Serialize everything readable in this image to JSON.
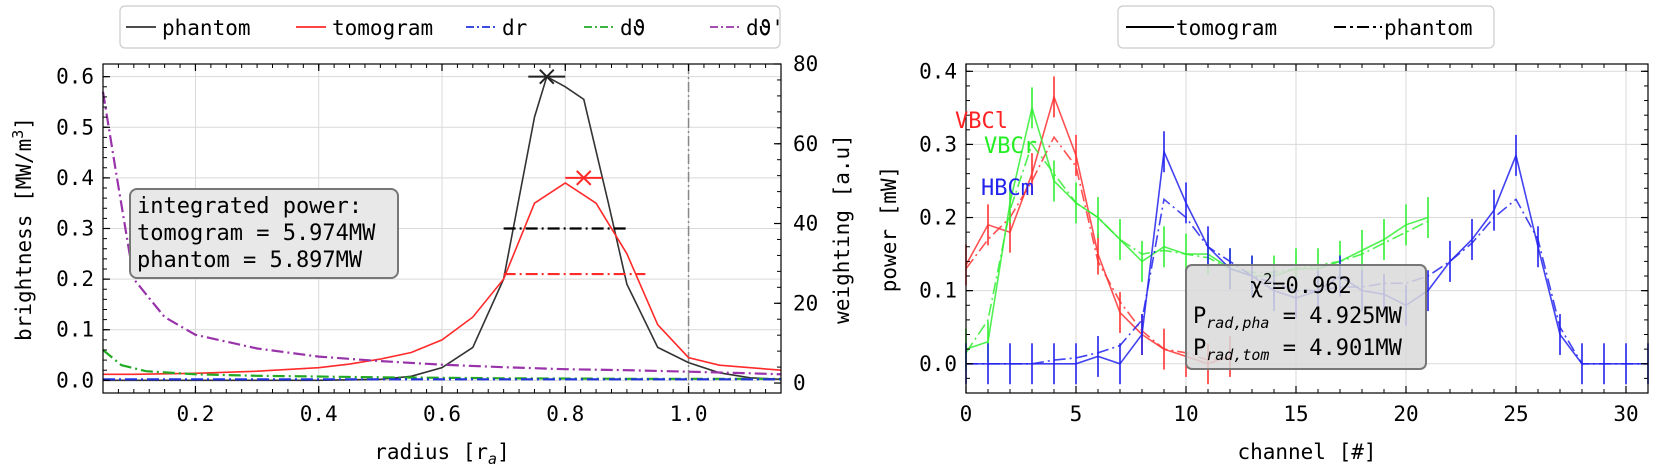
{
  "chart_data": [
    {
      "type": "line",
      "xlabel": "radius [r",
      "xlabel_sub": "a",
      "xlabel_end": "]",
      "ylabel": "brightness [MW/m",
      "ylabel_sup": "3",
      "ylabel_end": "]",
      "ylabel_right": "weighting [a.u]",
      "xlim": [
        0.05,
        1.15
      ],
      "ylim": [
        -0.025,
        0.625
      ],
      "ylim_right": [
        -2.5,
        80
      ],
      "xticks": [
        "0.2",
        "0.4",
        "0.6",
        "0.8",
        "1.0"
      ],
      "yticks": [
        "0.0",
        "0.1",
        "0.2",
        "0.3",
        "0.4",
        "0.5",
        "0.6"
      ],
      "yticks_right": [
        "0",
        "20",
        "40",
        "60",
        "80"
      ],
      "grid": true,
      "legend_placement": "top, outside",
      "legend": [
        {
          "label": "phantom",
          "color": "#333333",
          "style": "solid"
        },
        {
          "label": "tomogram",
          "color": "#ff2a2a",
          "style": "solid"
        },
        {
          "label": "dr",
          "color": "#2233dd",
          "style": "dashdot"
        },
        {
          "label": "dϑ",
          "color": "#22aa22",
          "style": "dashdot"
        },
        {
          "label": "dϑ'",
          "color": "#9933aa",
          "style": "dashdot"
        }
      ],
      "series": [
        {
          "name": "phantom",
          "color": "#333333",
          "x": [
            0.05,
            0.1,
            0.2,
            0.3,
            0.4,
            0.5,
            0.55,
            0.6,
            0.65,
            0.7,
            0.75,
            0.77,
            0.8,
            0.83,
            0.87,
            0.9,
            0.95,
            1.0,
            1.05,
            1.1,
            1.15
          ],
          "y": [
            0.0,
            0.0,
            0.0,
            0.0,
            0.0,
            0.002,
            0.008,
            0.025,
            0.065,
            0.2,
            0.52,
            0.6,
            0.58,
            0.555,
            0.35,
            0.19,
            0.065,
            0.035,
            0.015,
            0.005,
            0.002
          ]
        },
        {
          "name": "tomogram",
          "color": "#ff2a2a",
          "x": [
            0.05,
            0.1,
            0.2,
            0.3,
            0.4,
            0.45,
            0.5,
            0.55,
            0.6,
            0.65,
            0.7,
            0.75,
            0.8,
            0.85,
            0.9,
            0.95,
            1.0,
            1.05,
            1.1,
            1.15
          ],
          "y": [
            0.012,
            0.012,
            0.014,
            0.018,
            0.025,
            0.032,
            0.042,
            0.055,
            0.08,
            0.125,
            0.2,
            0.35,
            0.39,
            0.35,
            0.25,
            0.11,
            0.045,
            0.03,
            0.025,
            0.02
          ]
        },
        {
          "name": "dϑ'",
          "color": "#9933aa",
          "dashed": true,
          "x": [
            0.05,
            0.07,
            0.1,
            0.15,
            0.2,
            0.3,
            0.4,
            0.5,
            0.6,
            0.7,
            0.8,
            0.9,
            1.0,
            1.1,
            1.15
          ],
          "y": [
            0.57,
            0.42,
            0.2,
            0.125,
            0.09,
            0.063,
            0.047,
            0.038,
            0.031,
            0.026,
            0.022,
            0.02,
            0.017,
            0.014,
            0.012
          ]
        },
        {
          "name": "dϑ",
          "color": "#22aa22",
          "dashed": true,
          "x": [
            0.05,
            0.08,
            0.12,
            0.2,
            0.3,
            0.5,
            0.7,
            0.9,
            1.1,
            1.15
          ],
          "y": [
            0.06,
            0.03,
            0.018,
            0.012,
            0.009,
            0.006,
            0.004,
            0.003,
            0.003,
            0.003
          ]
        },
        {
          "name": "dr",
          "color": "#2233dd",
          "dashed": true,
          "x": [
            0.05,
            0.3,
            0.6,
            0.9,
            1.15
          ],
          "y": [
            0.002,
            0.002,
            0.002,
            0.002,
            0.002
          ]
        }
      ],
      "markers": [
        {
          "color": "#222222",
          "x": 0.77,
          "y": 0.6,
          "xerr": 0.03
        },
        {
          "color": "#ff2a2a",
          "x": 0.83,
          "y": 0.4,
          "xerr": 0.03
        }
      ],
      "width_lines": [
        {
          "color": "#000000",
          "x1": 0.7,
          "x2": 0.9,
          "y": 0.3
        },
        {
          "color": "#ff2a2a",
          "x1": 0.7,
          "x2": 0.93,
          "y": 0.21
        }
      ],
      "vline": {
        "x": 1.0,
        "color": "#888888"
      },
      "annotation": {
        "line1": "integrated power:",
        "line2": "tomogram = 5.974MW",
        "line3": "phantom = 5.897MW"
      }
    },
    {
      "type": "line",
      "xlabel": "channel [#]",
      "ylabel": "power [mW]",
      "xlim": [
        0,
        31
      ],
      "ylim": [
        -0.04,
        0.41
      ],
      "xticks": [
        "0",
        "5",
        "10",
        "15",
        "20",
        "25",
        "30"
      ],
      "yticks": [
        "0.0",
        "0.1",
        "0.2",
        "0.3",
        "0.4"
      ],
      "grid": true,
      "legend_placement": "top, outside",
      "legend": [
        {
          "label": "tomogram",
          "style": "solid"
        },
        {
          "label": "phantom",
          "style": "dashdot"
        }
      ],
      "camera_labels": [
        {
          "label": "VBCl",
          "color": "#ff2222"
        },
        {
          "label": "VBCr",
          "color": "#22ee22"
        },
        {
          "label": "HBCm",
          "color": "#2222ee"
        }
      ],
      "series": [
        {
          "name": "VBCl tomogram",
          "color": "#ff3333",
          "x": [
            0,
            1,
            2,
            3,
            4,
            5,
            6,
            7,
            8,
            9,
            10,
            11,
            12
          ],
          "y": [
            0.135,
            0.19,
            0.18,
            0.26,
            0.365,
            0.285,
            0.15,
            0.07,
            0.04,
            0.02,
            0.01,
            0.0,
            0.01
          ]
        },
        {
          "name": "VBCl phantom",
          "color": "#ff3333",
          "dashed": true,
          "x": [
            0,
            1,
            2,
            3,
            4,
            5,
            6,
            7,
            8,
            9,
            10,
            11,
            12
          ],
          "y": [
            0.13,
            0.17,
            0.2,
            0.25,
            0.31,
            0.27,
            0.14,
            0.085,
            0.045,
            0.02,
            0.015,
            0.005,
            0.008
          ]
        },
        {
          "name": "VBCr tomogram",
          "color": "#33ee33",
          "x": [
            0,
            1,
            2,
            3,
            4,
            5,
            6,
            7,
            8,
            9,
            10,
            11,
            12,
            13,
            14,
            15,
            16,
            17,
            18,
            19,
            20,
            21
          ],
          "y": [
            0.02,
            0.03,
            0.22,
            0.35,
            0.25,
            0.22,
            0.2,
            0.17,
            0.14,
            0.16,
            0.15,
            0.15,
            0.13,
            0.12,
            0.12,
            0.13,
            0.13,
            0.14,
            0.155,
            0.17,
            0.19,
            0.2
          ]
        },
        {
          "name": "VBCr phantom",
          "color": "#33ee33",
          "dashed": true,
          "x": [
            0,
            1,
            2,
            3,
            4,
            5,
            6,
            7,
            8,
            9,
            10,
            11,
            12,
            13,
            14,
            15,
            16,
            17,
            18,
            19,
            20,
            21
          ],
          "y": [
            0.015,
            0.06,
            0.21,
            0.3,
            0.26,
            0.22,
            0.2,
            0.17,
            0.15,
            0.155,
            0.15,
            0.145,
            0.13,
            0.125,
            0.125,
            0.13,
            0.135,
            0.14,
            0.15,
            0.165,
            0.18,
            0.195
          ]
        },
        {
          "name": "HBCm tomogram",
          "color": "#2222ee",
          "x": [
            0,
            1,
            2,
            3,
            4,
            5,
            6,
            7,
            8,
            9,
            10,
            11,
            12,
            13,
            14,
            15,
            16,
            17,
            18,
            19,
            20,
            21,
            22,
            23,
            24,
            25,
            26,
            27,
            28,
            29,
            30,
            31
          ],
          "y": [
            0.0,
            0.0,
            0.0,
            0.0,
            0.0,
            0.0,
            0.01,
            0.0,
            0.04,
            0.29,
            0.22,
            0.16,
            0.13,
            0.12,
            0.1,
            0.09,
            0.1,
            0.12,
            0.1,
            0.095,
            0.08,
            0.1,
            0.14,
            0.17,
            0.21,
            0.285,
            0.16,
            0.04,
            0.0,
            0.0,
            0.0,
            0.0
          ]
        },
        {
          "name": "HBCm phantom",
          "color": "#2222ee",
          "dashed": true,
          "x": [
            0,
            1,
            2,
            3,
            4,
            5,
            6,
            7,
            8,
            9,
            10,
            11,
            12,
            13,
            14,
            15,
            16,
            17,
            18,
            19,
            20,
            21,
            22,
            23,
            24,
            25,
            26,
            27,
            28,
            29,
            30,
            31
          ],
          "y": [
            0.0,
            0.0,
            0.0,
            0.0,
            0.005,
            0.008,
            0.015,
            0.025,
            0.06,
            0.225,
            0.2,
            0.16,
            0.14,
            0.12,
            0.11,
            0.1,
            0.1,
            0.105,
            0.105,
            0.11,
            0.11,
            0.12,
            0.14,
            0.165,
            0.2,
            0.225,
            0.17,
            0.05,
            0.0,
            0.0,
            0.0,
            0.0
          ]
        }
      ],
      "errorbar_halfheight": 0.028,
      "stats_box": {
        "chi_label": "χ",
        "chi_sup": "2",
        "chi_value": "=0.962",
        "p_pha_label": "P",
        "p_pha_sub": "rad,pha",
        "p_pha_value": " = 4.925MW",
        "p_tom_label": "P",
        "p_tom_sub": "rad,tom",
        "p_tom_value": " = 4.901MW"
      }
    }
  ]
}
